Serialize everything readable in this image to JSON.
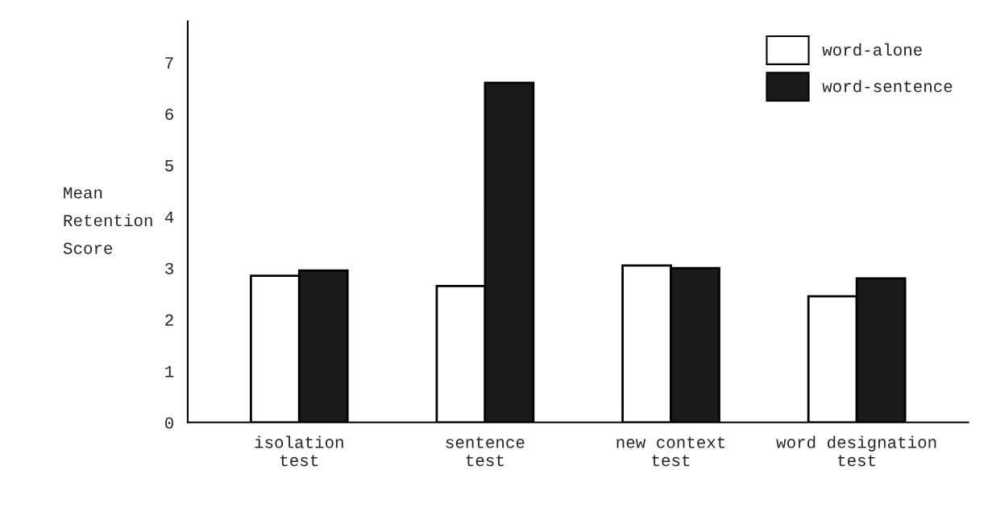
{
  "chart_data": {
    "type": "bar",
    "ylabel": "Mean\nRetention\nScore",
    "categories": [
      "isolation\ntest",
      "sentence\ntest",
      "new context\ntest",
      "word designation\ntest"
    ],
    "series": [
      {
        "name": "word-alone",
        "color": "#ffffff",
        "values": [
          2.85,
          2.65,
          3.05,
          2.45
        ]
      },
      {
        "name": "word-sentence",
        "color": "#1a1a1a",
        "values": [
          2.95,
          6.6,
          3.0,
          2.8
        ]
      }
    ],
    "ylim": [
      0,
      7.8
    ],
    "yticks": [
      0,
      1,
      2,
      3,
      4,
      5,
      6,
      7
    ],
    "grid": false,
    "legend": "top right"
  }
}
